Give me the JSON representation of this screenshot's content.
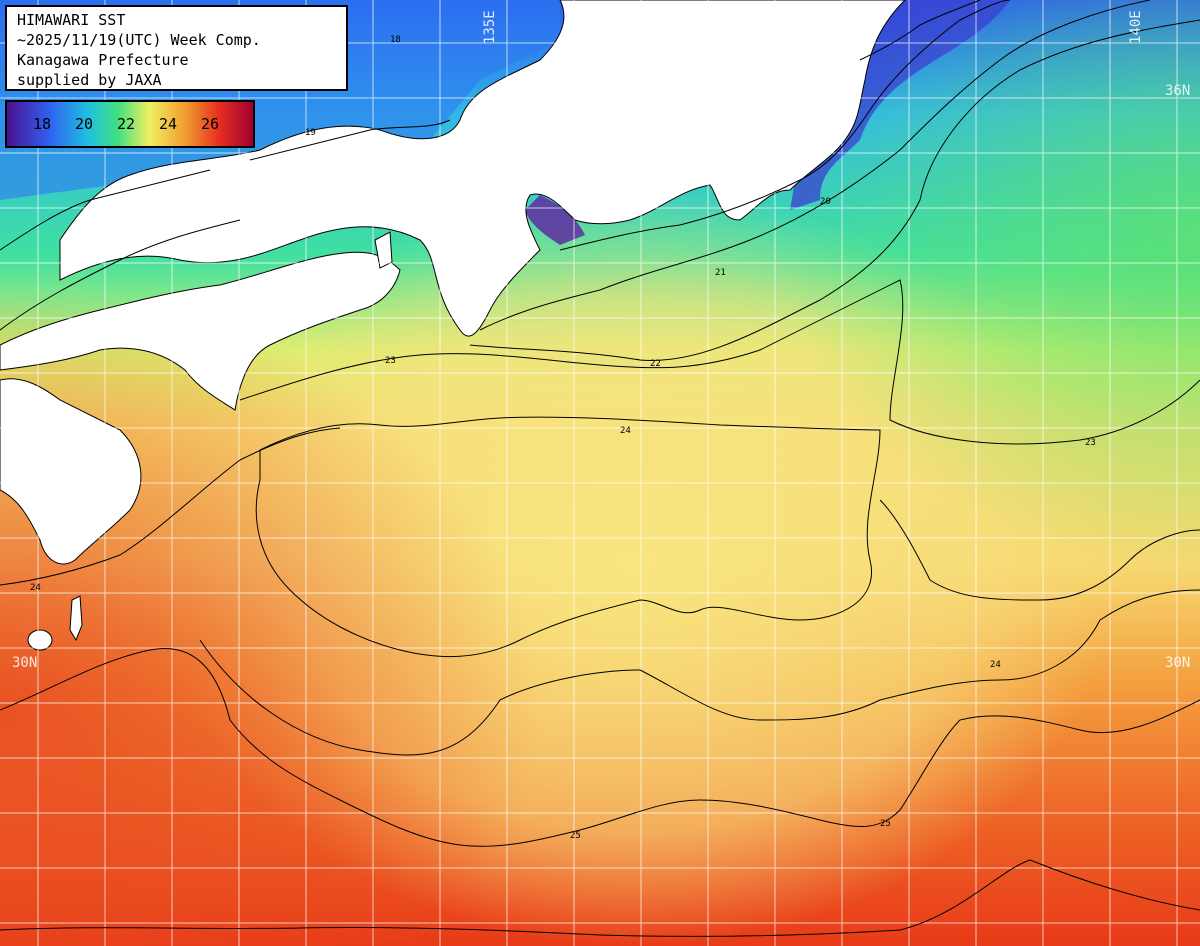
{
  "title_lines": [
    "HIMAWARI SST",
    "~2025/11/19(UTC) Week Comp.",
    "Kanagawa Prefecture",
    "supplied by JAXA"
  ],
  "legend": {
    "labels": [
      "18",
      "20",
      "22",
      "24",
      "26"
    ]
  },
  "coordinates": {
    "lat_36": "36N",
    "lat_30_left": "30N",
    "lat_30_right": "30N",
    "lon_135": "135E",
    "lon_140": "140E"
  },
  "contour_labels": [
    "18",
    "19",
    "20",
    "21",
    "22",
    "23",
    "24",
    "25"
  ],
  "colors": {
    "cold": "#4a1090",
    "cool": "#3a70f0",
    "mid": "#40e080",
    "warm": "#f0e070",
    "hot": "#e83020",
    "land": "#ffffff",
    "contour": "#000000",
    "grid": "#ffffff"
  }
}
